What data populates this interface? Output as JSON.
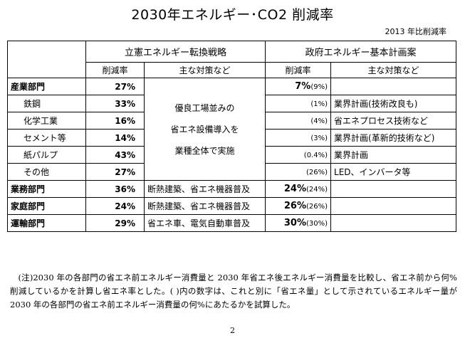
{
  "title": "2030年エネルギー･CO2 削減率",
  "subtitle": "2013 年比削減率",
  "headers": {
    "group_rikken": "立憲エネルギー転換戦略",
    "group_govt": "政府エネルギー基本計画案",
    "col_rate": "削減率",
    "col_measures": "主な対策など"
  },
  "rows": [
    {
      "sector": "産業部門",
      "rikken_rate": "27%",
      "govt_rate": "7%",
      "govt_paren": "(9%)",
      "govt_measure": ""
    },
    {
      "sector": "鉄鋼",
      "rikken_rate": "33%",
      "govt_rate": "",
      "govt_paren": "(1%)",
      "govt_measure": "業界計画(技術改良も)"
    },
    {
      "sector": "化学工業",
      "rikken_rate": "16%",
      "govt_rate": "",
      "govt_paren": "(4%)",
      "govt_measure": "省エネプロセス技術など"
    },
    {
      "sector": "セメント等",
      "rikken_rate": "14%",
      "govt_rate": "",
      "govt_paren": "(3%)",
      "govt_measure": "業界計画(革新的技術など)"
    },
    {
      "sector": "紙パルプ",
      "rikken_rate": "43%",
      "govt_rate": "",
      "govt_paren": "(0.4%)",
      "govt_measure": "業界計画"
    },
    {
      "sector": "その他",
      "rikken_rate": "27%",
      "govt_rate": "",
      "govt_paren": "(26%)",
      "govt_measure": "LED、インバータ等"
    },
    {
      "sector": "業務部門",
      "rikken_rate": "36%",
      "rikken_measure": "断熱建築、省エネ機器普及",
      "govt_rate": "24%",
      "govt_paren": "(24%)",
      "govt_measure": ""
    },
    {
      "sector": "家庭部門",
      "rikken_rate": "24%",
      "rikken_measure": "断熱建築、省エネ機器普及",
      "govt_rate": "26%",
      "govt_paren": "(26%)",
      "govt_measure": ""
    },
    {
      "sector": "運輸部門",
      "rikken_rate": "29%",
      "rikken_measure": "省エネ車、電気自動車普及",
      "govt_rate": "30%",
      "govt_paren": "(30%)",
      "govt_measure": ""
    }
  ],
  "industry_measure_lines": [
    "優良工場並みの",
    "省エネ設備導入を",
    "業種全体で実施"
  ],
  "note": "(注)2030 年の各部門の省エネ前エネルギー消費量と 2030 年省エネ後エネルギー消費量を比較し、省エネ前から何%削減しているかを計算し省エネ率とした。( )内の数字は、これと別に「省エネ量」として示されているエネルギー量が 2030 年の各部門の省エネ前エネルギー消費量の何%にあたるかを試算した。",
  "page_number": "2"
}
